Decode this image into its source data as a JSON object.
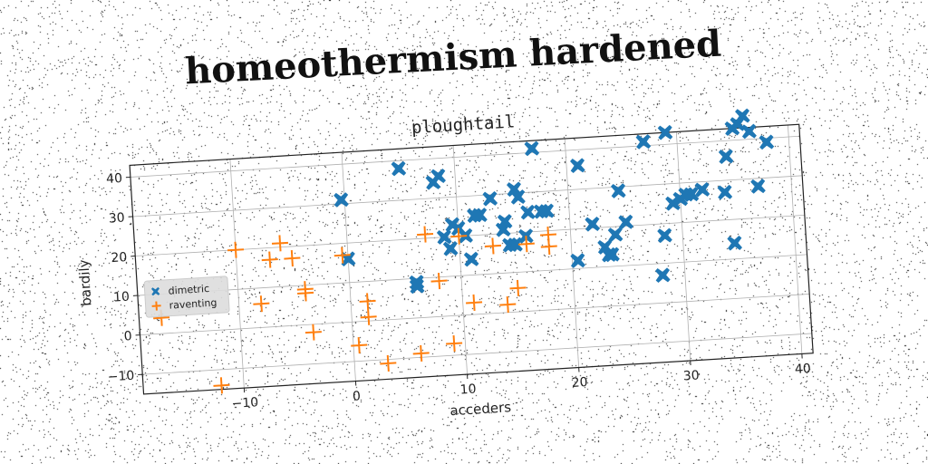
{
  "figure": {
    "suptitle": "homeothermism hardened"
  },
  "chart_data": {
    "type": "scatter",
    "title": "ploughtail",
    "xlabel": "acceders",
    "ylabel": "bardily",
    "xlim": [
      -19,
      41
    ],
    "ylim": [
      -15,
      43
    ],
    "xticks": [
      -10,
      0,
      10,
      20,
      30,
      40
    ],
    "yticks": [
      -10,
      0,
      10,
      20,
      30,
      40
    ],
    "xtick_labels": [
      "−10",
      "0",
      "10",
      "20",
      "30",
      "40"
    ],
    "ytick_labels": [
      "−10",
      "0",
      "10",
      "20",
      "30",
      "40"
    ],
    "grid": true,
    "legend_position": "center-left",
    "series": [
      {
        "name": "dimetric",
        "marker": "X",
        "color": "#1f77b4",
        "points": [
          [
            -0.3,
            31
          ],
          [
            0,
            16
          ],
          [
            5,
            38
          ],
          [
            6,
            9
          ],
          [
            6,
            8
          ],
          [
            8,
            34
          ],
          [
            8.5,
            35.5
          ],
          [
            8.7,
            20
          ],
          [
            9.2,
            17
          ],
          [
            9.5,
            23
          ],
          [
            10,
            22
          ],
          [
            10.6,
            20
          ],
          [
            11,
            14
          ],
          [
            11.5,
            25
          ],
          [
            12,
            25
          ],
          [
            13,
            29
          ],
          [
            14,
            21
          ],
          [
            14.2,
            23
          ],
          [
            14.5,
            17
          ],
          [
            15,
            17
          ],
          [
            15.2,
            31
          ],
          [
            15.5,
            29
          ],
          [
            16,
            19
          ],
          [
            16.3,
            25
          ],
          [
            17,
            41
          ],
          [
            17.5,
            25
          ],
          [
            18,
            25
          ],
          [
            20.5,
            12
          ],
          [
            21,
            36
          ],
          [
            22,
            21
          ],
          [
            23,
            15
          ],
          [
            23.3,
            13
          ],
          [
            23.6,
            13
          ],
          [
            24,
            18
          ],
          [
            24.5,
            29
          ],
          [
            25,
            21
          ],
          [
            27,
            41
          ],
          [
            28,
            7
          ],
          [
            28.4,
            17
          ],
          [
            29,
            43
          ],
          [
            29.3,
            25
          ],
          [
            30,
            26
          ],
          [
            30.5,
            27
          ],
          [
            31,
            27
          ],
          [
            32,
            28
          ],
          [
            34,
            27
          ],
          [
            34.3,
            36
          ],
          [
            34.6,
            14
          ],
          [
            35,
            43
          ],
          [
            35.5,
            44
          ],
          [
            36,
            46
          ],
          [
            36.5,
            42
          ],
          [
            37,
            28
          ],
          [
            38,
            39
          ]
        ]
      },
      {
        "name": "raventing",
        "marker": "P",
        "color": "#ff7f0e",
        "points": [
          [
            -17,
            4
          ],
          [
            -12,
            -14
          ],
          [
            -10,
            20
          ],
          [
            -8,
            6
          ],
          [
            -7,
            17
          ],
          [
            -6,
            21
          ],
          [
            -5,
            17
          ],
          [
            -4,
            8
          ],
          [
            -4,
            9
          ],
          [
            -3.5,
            -2
          ],
          [
            -0.5,
            17
          ],
          [
            0.5,
            -6
          ],
          [
            1.5,
            5
          ],
          [
            1.5,
            1
          ],
          [
            3,
            -11
          ],
          [
            6,
            -9
          ],
          [
            7,
            21
          ],
          [
            8,
            9
          ],
          [
            9,
            -7
          ],
          [
            10,
            20
          ],
          [
            11,
            3
          ],
          [
            13,
            17
          ],
          [
            14,
            2
          ],
          [
            15,
            6
          ],
          [
            16,
            17
          ],
          [
            18,
            19
          ],
          [
            18,
            16
          ]
        ]
      }
    ]
  }
}
